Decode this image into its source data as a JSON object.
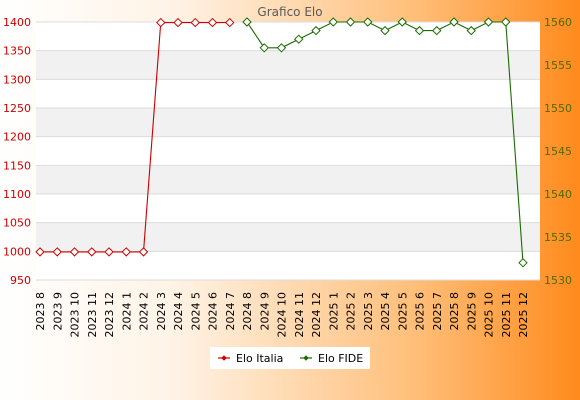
{
  "chart_data": {
    "type": "line",
    "title": "Grafico Elo",
    "categories": [
      "2023 8",
      "2023 9",
      "2023 10",
      "2023 11",
      "2023 12",
      "2024 1",
      "2024 2",
      "2024 3",
      "2024 4",
      "2024 5",
      "2024 6",
      "2024 7",
      "2024 8",
      "2024 9",
      "2024 10",
      "2024 11",
      "2024 12",
      "2025 1",
      "2025 2",
      "2025 3",
      "2025 4",
      "2025 5",
      "2025 6",
      "2025 7",
      "2025 8",
      "2025 9",
      "2025 10",
      "2025 11",
      "2025 12"
    ],
    "series": [
      {
        "name": "Elo Italia",
        "axis": "left",
        "color": "#cc0000",
        "values": [
          999,
          999,
          999,
          999,
          999,
          999,
          999,
          1399,
          1399,
          1399,
          1399,
          1399,
          null,
          null,
          null,
          null,
          null,
          null,
          null,
          null,
          null,
          null,
          null,
          null,
          null,
          null,
          null,
          null,
          null
        ]
      },
      {
        "name": "Elo FIDE",
        "axis": "right",
        "color": "#1a6b00",
        "values": [
          null,
          null,
          null,
          null,
          null,
          null,
          null,
          null,
          null,
          null,
          null,
          null,
          1560,
          1557,
          1557,
          1558,
          1559,
          1560,
          1560,
          1560,
          1559,
          1560,
          1559,
          1559,
          1560,
          1559,
          1560,
          1560,
          1532
        ]
      }
    ],
    "y_left": {
      "min": 950,
      "max": 1400,
      "ticks": [
        950,
        1000,
        1050,
        1100,
        1150,
        1200,
        1250,
        1300,
        1350,
        1400
      ],
      "color": "#cc0000"
    },
    "y_right": {
      "min": 1530,
      "max": 1560,
      "ticks": [
        1530,
        1535,
        1540,
        1545,
        1550,
        1555,
        1560
      ],
      "color": "#4d6b00"
    },
    "grid": true,
    "legend_position": "bottom-center"
  }
}
